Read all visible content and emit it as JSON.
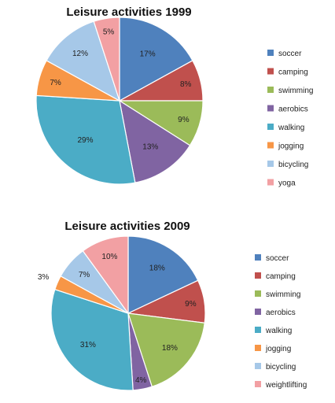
{
  "chart_data": [
    {
      "type": "pie",
      "title": "Leisure activities 1999",
      "categories": [
        "soccer",
        "camping",
        "swimming",
        "aerobics",
        "walking",
        "jogging",
        "bicycling",
        "yoga"
      ],
      "values": [
        17,
        8,
        9,
        13,
        29,
        7,
        12,
        5
      ],
      "labels": [
        "17%",
        "8%",
        "9%",
        "13%",
        "29%",
        "7%",
        "12%",
        "5%"
      ],
      "colors": [
        "#4f81bd",
        "#c0504d",
        "#9bbb59",
        "#8064a2",
        "#4bacc6",
        "#f79646",
        "#a6c8e8",
        "#f2a0a3"
      ],
      "legend": "right"
    },
    {
      "type": "pie",
      "title": "Leisure activities 2009",
      "categories": [
        "soccer",
        "camping",
        "swimming",
        "aerobics",
        "walking",
        "jogging",
        "bicycling",
        "weightlifting"
      ],
      "values": [
        18,
        9,
        18,
        4,
        31,
        3,
        7,
        10
      ],
      "labels": [
        "18%",
        "9%",
        "18%",
        "4%",
        "31%",
        "3%",
        "7%",
        "10%"
      ],
      "colors": [
        "#4f81bd",
        "#c0504d",
        "#9bbb59",
        "#8064a2",
        "#4bacc6",
        "#f79646",
        "#a6c8e8",
        "#f2a0a3"
      ],
      "legend": "right"
    }
  ]
}
